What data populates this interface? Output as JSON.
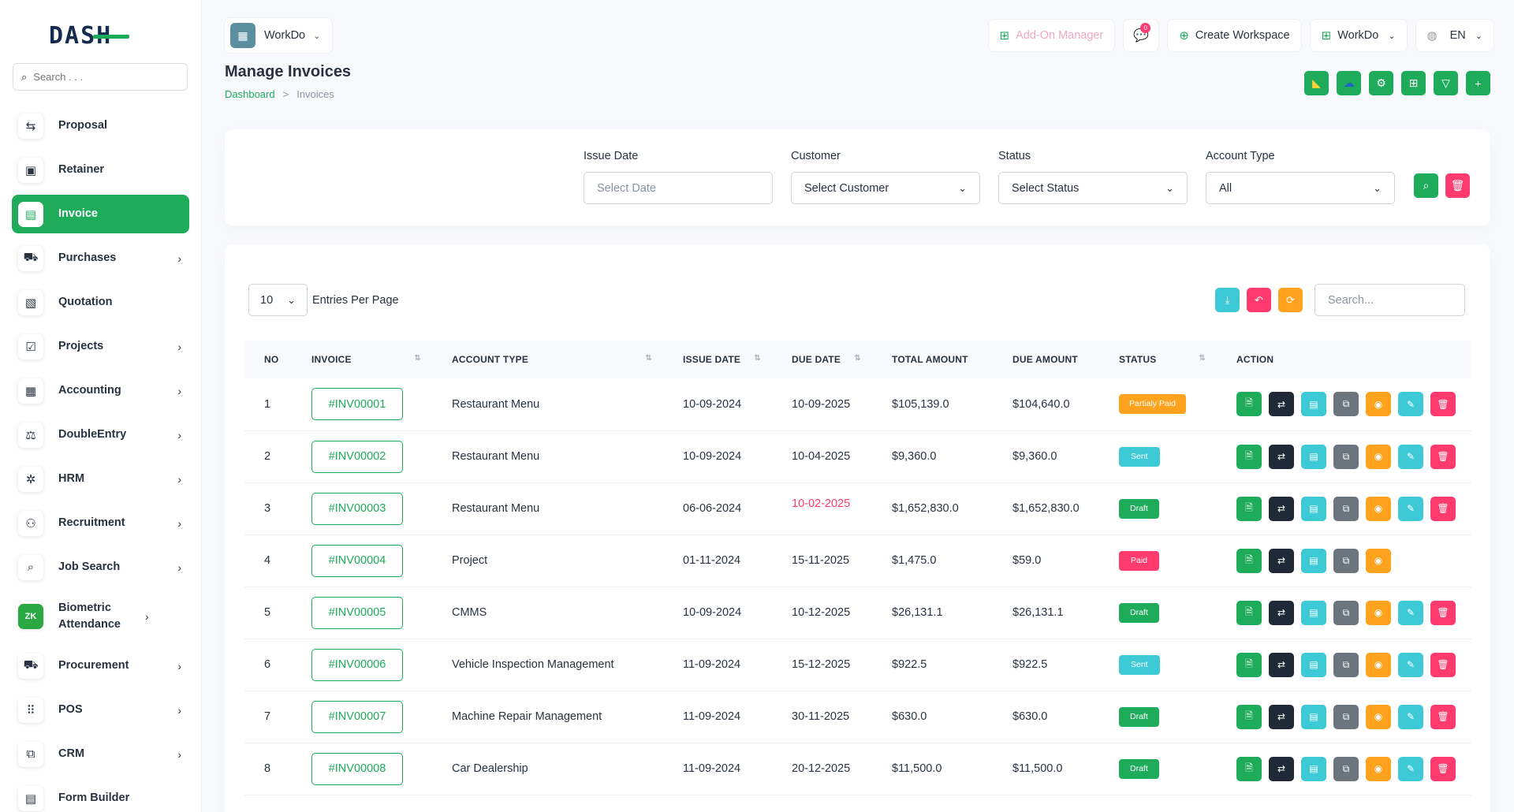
{
  "brand": {
    "logo_text": "DASH"
  },
  "sidebar": {
    "search_placeholder": "Search . . .",
    "items": [
      {
        "label": "Proposal",
        "icon": "proposal-icon",
        "glyph": "⇆",
        "chevron": false
      },
      {
        "label": "Retainer",
        "icon": "retainer-icon",
        "glyph": "▣",
        "chevron": false
      },
      {
        "label": "Invoice",
        "icon": "invoice-icon",
        "glyph": "▤",
        "chevron": false,
        "active": true
      },
      {
        "label": "Purchases",
        "icon": "cart-icon",
        "glyph": "⛟",
        "chevron": true
      },
      {
        "label": "Quotation",
        "icon": "quotation-icon",
        "glyph": "▧",
        "chevron": false
      },
      {
        "label": "Projects",
        "icon": "projects-icon",
        "glyph": "☑",
        "chevron": true
      },
      {
        "label": "Accounting",
        "icon": "accounting-icon",
        "glyph": "▦",
        "chevron": true
      },
      {
        "label": "DoubleEntry",
        "icon": "double-entry-icon",
        "glyph": "⚖",
        "chevron": true
      },
      {
        "label": "HRM",
        "icon": "hrm-icon",
        "glyph": "✲",
        "chevron": true
      },
      {
        "label": "Recruitment",
        "icon": "recruitment-icon",
        "glyph": "⚇",
        "chevron": true
      },
      {
        "label": "Job Search",
        "icon": "job-search-icon",
        "glyph": "⌕",
        "chevron": true
      },
      {
        "label": "Biometric Attendance",
        "icon": "biometric-icon",
        "glyph": "ZK",
        "chevron": true,
        "tall": true
      },
      {
        "label": "Procurement",
        "icon": "procurement-icon",
        "glyph": "⛟",
        "chevron": true
      },
      {
        "label": "POS",
        "icon": "pos-icon",
        "glyph": "⠿",
        "chevron": true
      },
      {
        "label": "CRM",
        "icon": "crm-icon",
        "glyph": "⧉",
        "chevron": true
      },
      {
        "label": "Form Builder",
        "icon": "form-builder-icon",
        "glyph": "▤",
        "chevron": false
      }
    ]
  },
  "header": {
    "workspace": "WorkDo",
    "addon_label": "Add-On Manager",
    "messages_count": "0",
    "create_workspace": "Create Workspace",
    "workspace_switch": "WorkDo",
    "language": "EN"
  },
  "page": {
    "title": "Manage Invoices",
    "breadcrumb_home": "Dashboard",
    "breadcrumb_sep": ">",
    "breadcrumb_current": "Invoices"
  },
  "filters": {
    "issue_date": {
      "label": "Issue Date",
      "placeholder": "Select Date"
    },
    "customer": {
      "label": "Customer",
      "value": "Select Customer"
    },
    "status": {
      "label": "Status",
      "value": "Select Status"
    },
    "account_type": {
      "label": "Account Type",
      "value": "All"
    }
  },
  "table": {
    "entries_value": "10",
    "entries_label": "Entries Per Page",
    "search_placeholder": "Search...",
    "columns": [
      "No",
      "Invoice",
      "Account Type",
      "Issue Date",
      "Due Date",
      "Total Amount",
      "Due Amount",
      "Status",
      "Action"
    ],
    "rows": [
      {
        "no": "1",
        "invoice": "#INV00001",
        "account_type": "Restaurant Menu",
        "issue_date": "10-09-2024",
        "due_date": "10-09-2025",
        "total": "$105,139.0",
        "due": "$104,640.0",
        "status": "Partialy Paid",
        "status_kind": "partial",
        "overdue": false,
        "full_actions": true
      },
      {
        "no": "2",
        "invoice": "#INV00002",
        "account_type": "Restaurant Menu",
        "issue_date": "10-09-2024",
        "due_date": "10-04-2025",
        "total": "$9,360.0",
        "due": "$9,360.0",
        "status": "Sent",
        "status_kind": "sent",
        "overdue": false,
        "full_actions": true
      },
      {
        "no": "3",
        "invoice": "#INV00003",
        "account_type": "Restaurant Menu",
        "issue_date": "06-06-2024",
        "due_date": "10-02-2025",
        "total": "$1,652,830.0",
        "due": "$1,652,830.0",
        "status": "Draft",
        "status_kind": "draft",
        "overdue": true,
        "full_actions": true
      },
      {
        "no": "4",
        "invoice": "#INV00004",
        "account_type": "Project",
        "issue_date": "01-11-2024",
        "due_date": "15-11-2025",
        "total": "$1,475.0",
        "due": "$59.0",
        "status": "Paid",
        "status_kind": "paid",
        "overdue": false,
        "full_actions": false
      },
      {
        "no": "5",
        "invoice": "#INV00005",
        "account_type": "CMMS",
        "issue_date": "10-09-2024",
        "due_date": "10-12-2025",
        "total": "$26,131.1",
        "due": "$26,131.1",
        "status": "Draft",
        "status_kind": "draft",
        "overdue": false,
        "full_actions": true
      },
      {
        "no": "6",
        "invoice": "#INV00006",
        "account_type": "Vehicle Inspection Management",
        "issue_date": "11-09-2024",
        "due_date": "15-12-2025",
        "total": "$922.5",
        "due": "$922.5",
        "status": "Sent",
        "status_kind": "sent",
        "overdue": false,
        "full_actions": true
      },
      {
        "no": "7",
        "invoice": "#INV00007",
        "account_type": "Machine Repair Management",
        "issue_date": "11-09-2024",
        "due_date": "30-11-2025",
        "total": "$630.0",
        "due": "$630.0",
        "status": "Draft",
        "status_kind": "draft",
        "overdue": false,
        "full_actions": true
      },
      {
        "no": "8",
        "invoice": "#INV00008",
        "account_type": "Car Dealership",
        "issue_date": "11-09-2024",
        "due_date": "20-12-2025",
        "total": "$11,500.0",
        "due": "$11,500.0",
        "status": "Draft",
        "status_kind": "draft",
        "overdue": false,
        "full_actions": true
      }
    ]
  },
  "colors": {
    "primary": "#1eac5a",
    "danger": "#ff3a6e",
    "warning": "#ffa21d",
    "info": "#3ec9d6"
  }
}
